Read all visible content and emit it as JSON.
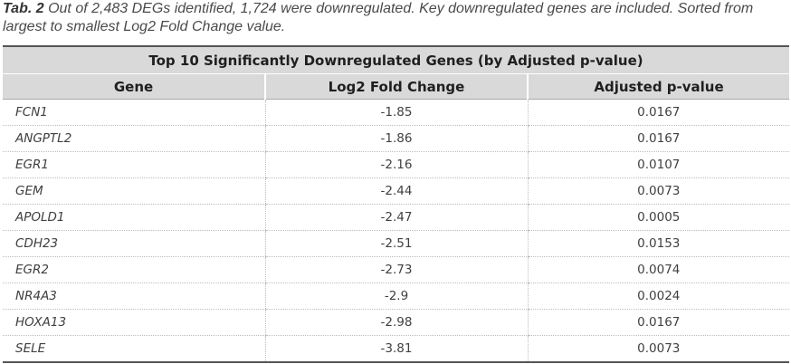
{
  "caption": {
    "label": "Tab. 2",
    "text": " Out of 2,483 DEGs identified, 1,724 were downregulated. Key downregulated genes are included. Sorted from largest to smallest Log2 Fold Change value."
  },
  "table": {
    "title": "Top 10 Significantly Downregulated Genes (by Adjusted p-value)",
    "headers": [
      "Gene",
      "Log2 Fold Change",
      "Adjusted p-value"
    ],
    "rows": [
      {
        "gene": "FCN1",
        "log2fc": "-1.85",
        "padj": "0.0167"
      },
      {
        "gene": "ANGPTL2",
        "log2fc": "-1.86",
        "padj": "0.0167"
      },
      {
        "gene": "EGR1",
        "log2fc": "-2.16",
        "padj": "0.0107"
      },
      {
        "gene": "GEM",
        "log2fc": "-2.44",
        "padj": "0.0073"
      },
      {
        "gene": "APOLD1",
        "log2fc": "-2.47",
        "padj": "0.0005"
      },
      {
        "gene": "CDH23",
        "log2fc": "-2.51",
        "padj": "0.0153"
      },
      {
        "gene": "EGR2",
        "log2fc": "-2.73",
        "padj": "0.0074"
      },
      {
        "gene": "NR4A3",
        "log2fc": "-2.9",
        "padj": "0.0024"
      },
      {
        "gene": "HOXA13",
        "log2fc": "-2.98",
        "padj": "0.0167"
      },
      {
        "gene": "SELE",
        "log2fc": "-3.81",
        "padj": "0.0073"
      }
    ]
  }
}
